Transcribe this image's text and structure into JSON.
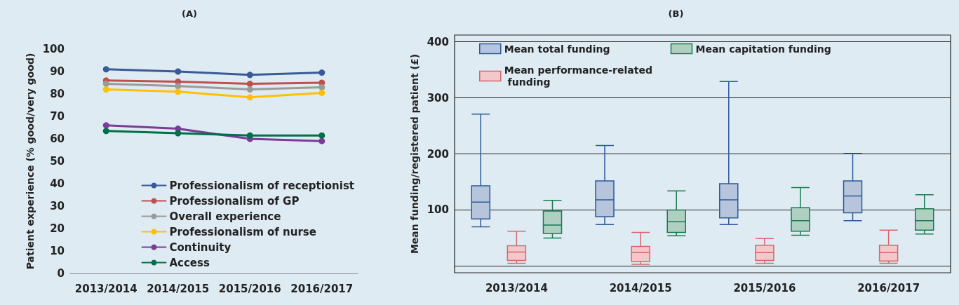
{
  "chart_data": [
    {
      "type": "line",
      "title": "(A)",
      "ylabel": "Patient experience (% good/very good)",
      "categories": [
        "2013/2014",
        "2014/2015",
        "2015/2016",
        "2016/2017"
      ],
      "series": [
        {
          "name": "Professionalism of receptionist",
          "color": "#3a5a95",
          "values": [
            91,
            90,
            88.5,
            89.5
          ]
        },
        {
          "name": "Professionalism of GP",
          "color": "#c0504d",
          "values": [
            86,
            85.5,
            84.5,
            85
          ]
        },
        {
          "name": "Overall experience",
          "color": "#9b9b9b",
          "values": [
            84.5,
            83.5,
            82,
            83
          ]
        },
        {
          "name": "Professionalism of nurse",
          "color": "#ffc000",
          "values": [
            82,
            81,
            78.5,
            80.5
          ]
        },
        {
          "name": "Continuity",
          "color": "#7a3c96",
          "values": [
            66,
            64.5,
            60,
            59
          ]
        },
        {
          "name": "Access",
          "color": "#00704a",
          "values": [
            63.5,
            62.5,
            61.5,
            61.5
          ]
        }
      ],
      "ylim": [
        0,
        100
      ],
      "yticks": [
        0,
        10,
        20,
        30,
        40,
        50,
        60,
        70,
        80,
        90,
        100
      ],
      "grid": false,
      "legend": "bottom right",
      "marker": "circle",
      "line_style": "solid"
    },
    {
      "type": "box",
      "title": "(B)",
      "ylabel": "Mean funding/registered patient (£)",
      "categories": [
        "2013/2014",
        "2014/2015",
        "2015/2016",
        "2016/2017"
      ],
      "series": [
        {
          "name": "Mean total funding",
          "color": "#2d5a9a",
          "boxes": [
            {
              "low": 70,
              "q1": 84,
              "median": 114,
              "q3": 143,
              "high": 271
            },
            {
              "low": 74,
              "q1": 88,
              "median": 118,
              "q3": 152,
              "high": 215
            },
            {
              "low": 74,
              "q1": 86,
              "median": 118,
              "q3": 147,
              "high": 329
            },
            {
              "low": 81,
              "q1": 95,
              "median": 125,
              "q3": 152,
              "high": 201
            }
          ]
        },
        {
          "name": "Mean capitation funding",
          "color": "#1a7a4f",
          "boxes": [
            {
              "low": 50,
              "q1": 58,
              "median": 73,
              "q3": 98,
              "high": 117
            },
            {
              "low": 54,
              "q1": 60,
              "median": 79,
              "q3": 100,
              "high": 134
            },
            {
              "low": 55,
              "q1": 62,
              "median": 81,
              "q3": 104,
              "high": 140
            },
            {
              "low": 57,
              "q1": 64,
              "median": 81,
              "q3": 102,
              "high": 127
            }
          ]
        },
        {
          "name": "Mean performance-related funding",
          "color": "#d9656b",
          "boxes": [
            {
              "low": 5,
              "q1": 10,
              "median": 25,
              "q3": 36,
              "high": 62
            },
            {
              "low": 3,
              "q1": 8,
              "median": 24,
              "q3": 35,
              "high": 60
            },
            {
              "low": 5,
              "q1": 10,
              "median": 24,
              "q3": 37,
              "high": 49
            },
            {
              "low": 5,
              "q1": 9,
              "median": 24,
              "q3": 37,
              "high": 64
            }
          ]
        }
      ],
      "ylim": [
        -12,
        412
      ],
      "yticks": [
        {
          "value": 0,
          "label": null
        },
        100,
        200,
        300,
        400
      ],
      "grid": "y",
      "legend": "top left"
    }
  ]
}
